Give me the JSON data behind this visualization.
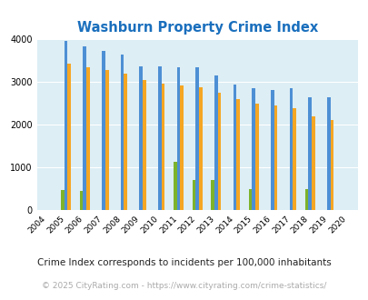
{
  "title": "Washburn Property Crime Index",
  "title_color": "#1a6fbd",
  "years": [
    2004,
    2005,
    2006,
    2007,
    2008,
    2009,
    2010,
    2011,
    2012,
    2013,
    2014,
    2015,
    2016,
    2017,
    2018,
    2019,
    2020
  ],
  "washburn": [
    0,
    470,
    450,
    0,
    0,
    0,
    0,
    1130,
    700,
    700,
    0,
    490,
    0,
    0,
    490,
    0,
    0
  ],
  "missouri": [
    0,
    3960,
    3820,
    3720,
    3630,
    3370,
    3350,
    3330,
    3330,
    3140,
    2930,
    2860,
    2810,
    2840,
    2630,
    2640,
    0
  ],
  "national": [
    0,
    3420,
    3340,
    3270,
    3200,
    3040,
    2950,
    2920,
    2870,
    2740,
    2600,
    2490,
    2450,
    2390,
    2200,
    2100,
    0
  ],
  "washburn_color": "#7db32b",
  "missouri_color": "#4d8fd4",
  "national_color": "#f5a623",
  "bg_color": "#ddeef5",
  "ylim": [
    0,
    4000
  ],
  "yticks": [
    0,
    1000,
    2000,
    3000,
    4000
  ],
  "footnote1": "Crime Index corresponds to incidents per 100,000 inhabitants",
  "footnote2": "© 2025 CityRating.com - https://www.cityrating.com/crime-statistics/",
  "bar_width": 0.18,
  "figsize": [
    4.06,
    3.3
  ],
  "dpi": 100
}
